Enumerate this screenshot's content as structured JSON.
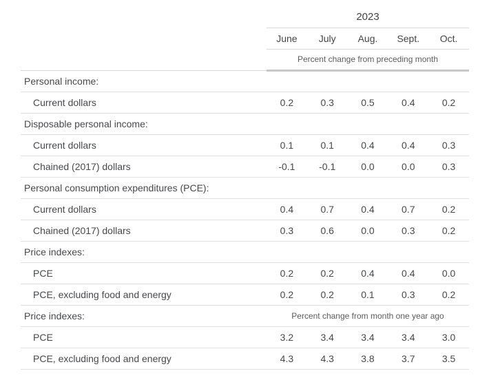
{
  "chart_data": {
    "type": "table",
    "year_header": "2023",
    "columns": [
      "June",
      "July",
      "Aug.",
      "Sept.",
      "Oct."
    ],
    "column_note": "Percent change from preceding month",
    "rows": [
      {
        "label": "Personal income:",
        "kind": "section",
        "note": null,
        "values": null
      },
      {
        "label": "Current dollars",
        "kind": "item",
        "note": null,
        "values": [
          0.2,
          0.3,
          0.5,
          0.4,
          0.2
        ]
      },
      {
        "label": "Disposable personal income:",
        "kind": "section",
        "note": null,
        "values": null
      },
      {
        "label": "Current dollars",
        "kind": "item",
        "note": null,
        "values": [
          0.1,
          0.1,
          0.4,
          0.4,
          0.3
        ]
      },
      {
        "label": "Chained (2017) dollars",
        "kind": "item",
        "note": null,
        "values": [
          -0.1,
          -0.1,
          0.0,
          0.0,
          0.3
        ]
      },
      {
        "label": "Personal consumption expenditures (PCE):",
        "kind": "section",
        "note": null,
        "values": null
      },
      {
        "label": "Current dollars",
        "kind": "item",
        "note": null,
        "values": [
          0.4,
          0.7,
          0.4,
          0.7,
          0.2
        ]
      },
      {
        "label": "Chained (2017) dollars",
        "kind": "item",
        "note": null,
        "values": [
          0.3,
          0.6,
          0.0,
          0.3,
          0.2
        ]
      },
      {
        "label": "Price indexes:",
        "kind": "section",
        "note": null,
        "values": null
      },
      {
        "label": "PCE",
        "kind": "item",
        "note": null,
        "values": [
          0.2,
          0.2,
          0.4,
          0.4,
          0.0
        ]
      },
      {
        "label": "PCE, excluding food and energy",
        "kind": "item",
        "note": null,
        "values": [
          0.2,
          0.2,
          0.1,
          0.3,
          0.2
        ]
      },
      {
        "label": "Price indexes:",
        "kind": "section",
        "note": "Percent change from month one year ago",
        "values": null
      },
      {
        "label": "PCE",
        "kind": "item",
        "note": null,
        "values": [
          3.2,
          3.4,
          3.4,
          3.4,
          3.0
        ]
      },
      {
        "label": "PCE, excluding food and energy",
        "kind": "item",
        "note": null,
        "values": [
          4.3,
          4.3,
          3.8,
          3.7,
          3.5
        ]
      }
    ]
  },
  "colors": {
    "background": "#ffffff",
    "text": "#47484b",
    "muted_text": "#5c5c5e",
    "row_border": "#e0e0e0",
    "header_border": "#d8d8d8",
    "thick_border": "#c8c8c8"
  }
}
